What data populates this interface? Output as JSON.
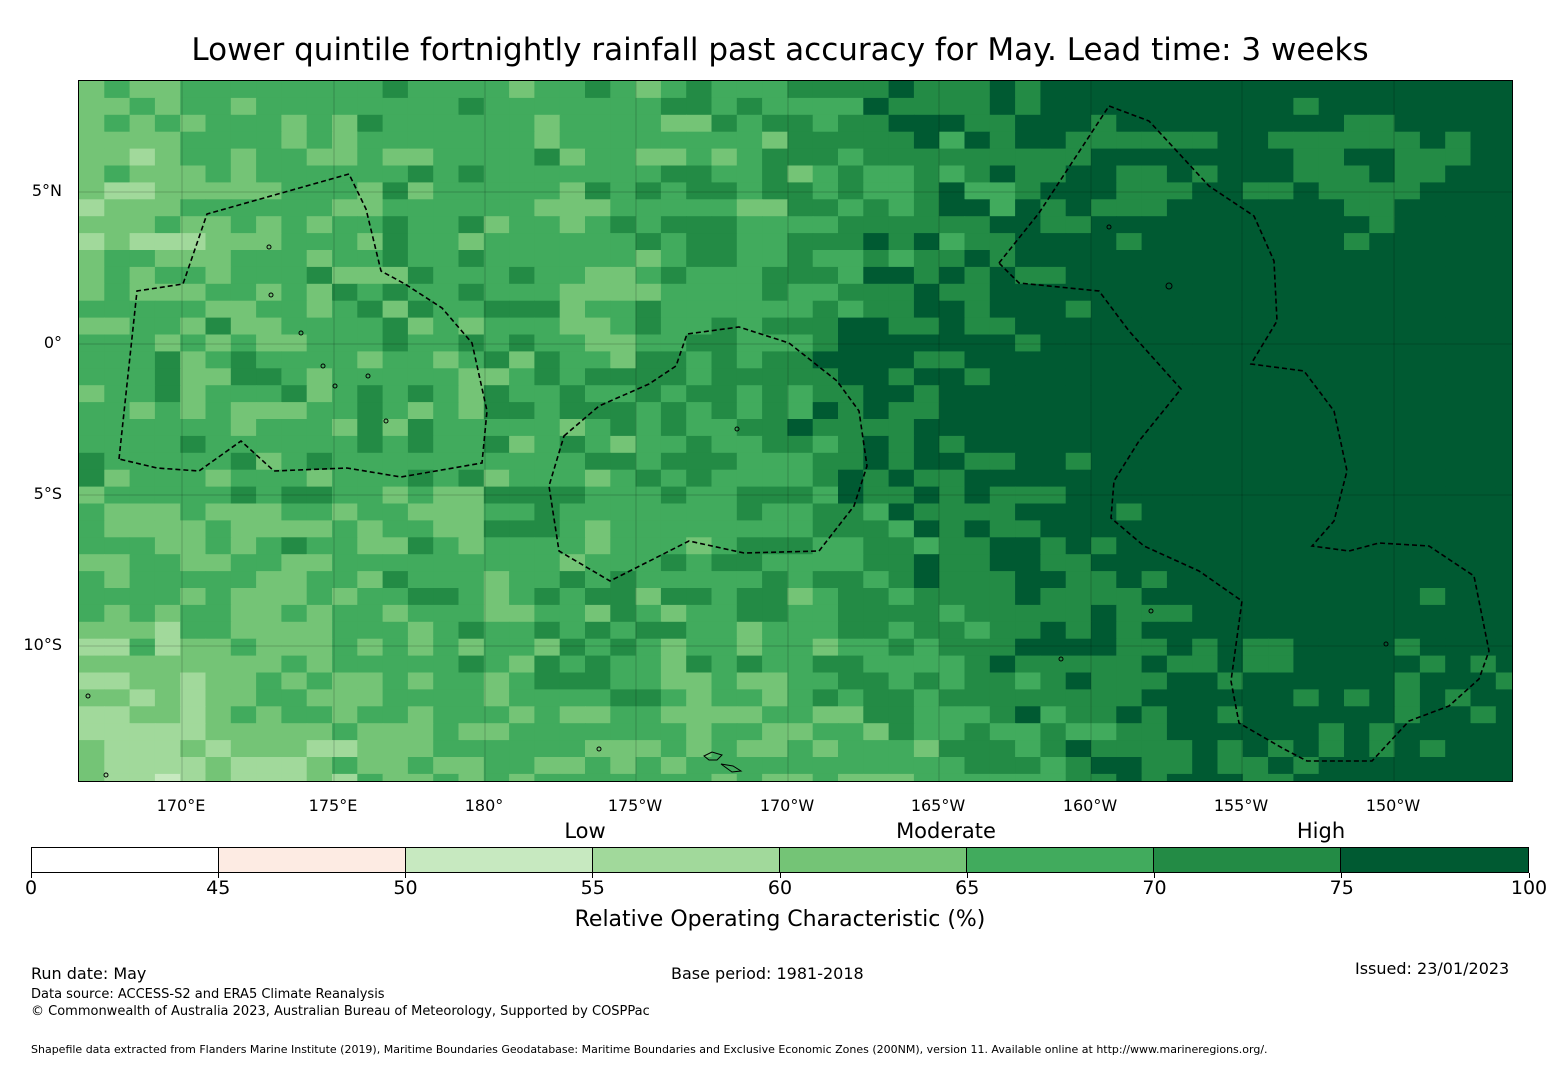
{
  "title": "Lower quintile fortnightly rainfall past accuracy for May. Lead time: 3 weeks",
  "map": {
    "lat_labels": [
      "5°N",
      "0°",
      "5°S",
      "10°S"
    ],
    "lon_labels": [
      "170°E",
      "175°E",
      "180°",
      "175°W",
      "170°W",
      "165°W",
      "160°W",
      "155°W",
      "150°W"
    ],
    "boundary_style": "dashed",
    "land_color": "#000000"
  },
  "legend": {
    "categories": [
      "Low",
      "Moderate",
      "High"
    ],
    "bins": [
      {
        "min": 0,
        "max": 45,
        "color": "#ffffff"
      },
      {
        "min": 45,
        "max": 50,
        "color": "#fdebe3"
      },
      {
        "min": 50,
        "max": 55,
        "color": "#c7e9c0"
      },
      {
        "min": 55,
        "max": 60,
        "color": "#a1d99b"
      },
      {
        "min": 60,
        "max": 65,
        "color": "#74c476"
      },
      {
        "min": 65,
        "max": 70,
        "color": "#41ab5d"
      },
      {
        "min": 70,
        "max": 75,
        "color": "#238b45"
      },
      {
        "min": 75,
        "max": 100,
        "color": "#005a32"
      }
    ],
    "tick_labels": [
      "0",
      "45",
      "50",
      "55",
      "60",
      "65",
      "70",
      "75",
      "100"
    ],
    "title": "Relative Operating Characteristic (%)"
  },
  "footer": {
    "run_date": "Run date: May",
    "base_period": "Base period: 1981-2018",
    "issued": "Issued: 23/01/2023",
    "data_source": "Data source: ACCESS-S2 and ERA5 Climate Reanalysis",
    "copyright": "© Commonwealth of Australia 2023, Australian Bureau of Meteorology, Supported by COSPPac",
    "shapefile": "Shapefile data extracted from Flanders Marine Institute (2019), Maritime Boundaries Geodatabase: Maritime Boundaries and Exclusive Economic Zones (200NM), version 11. Available online at http://www.marineregions.org/."
  }
}
